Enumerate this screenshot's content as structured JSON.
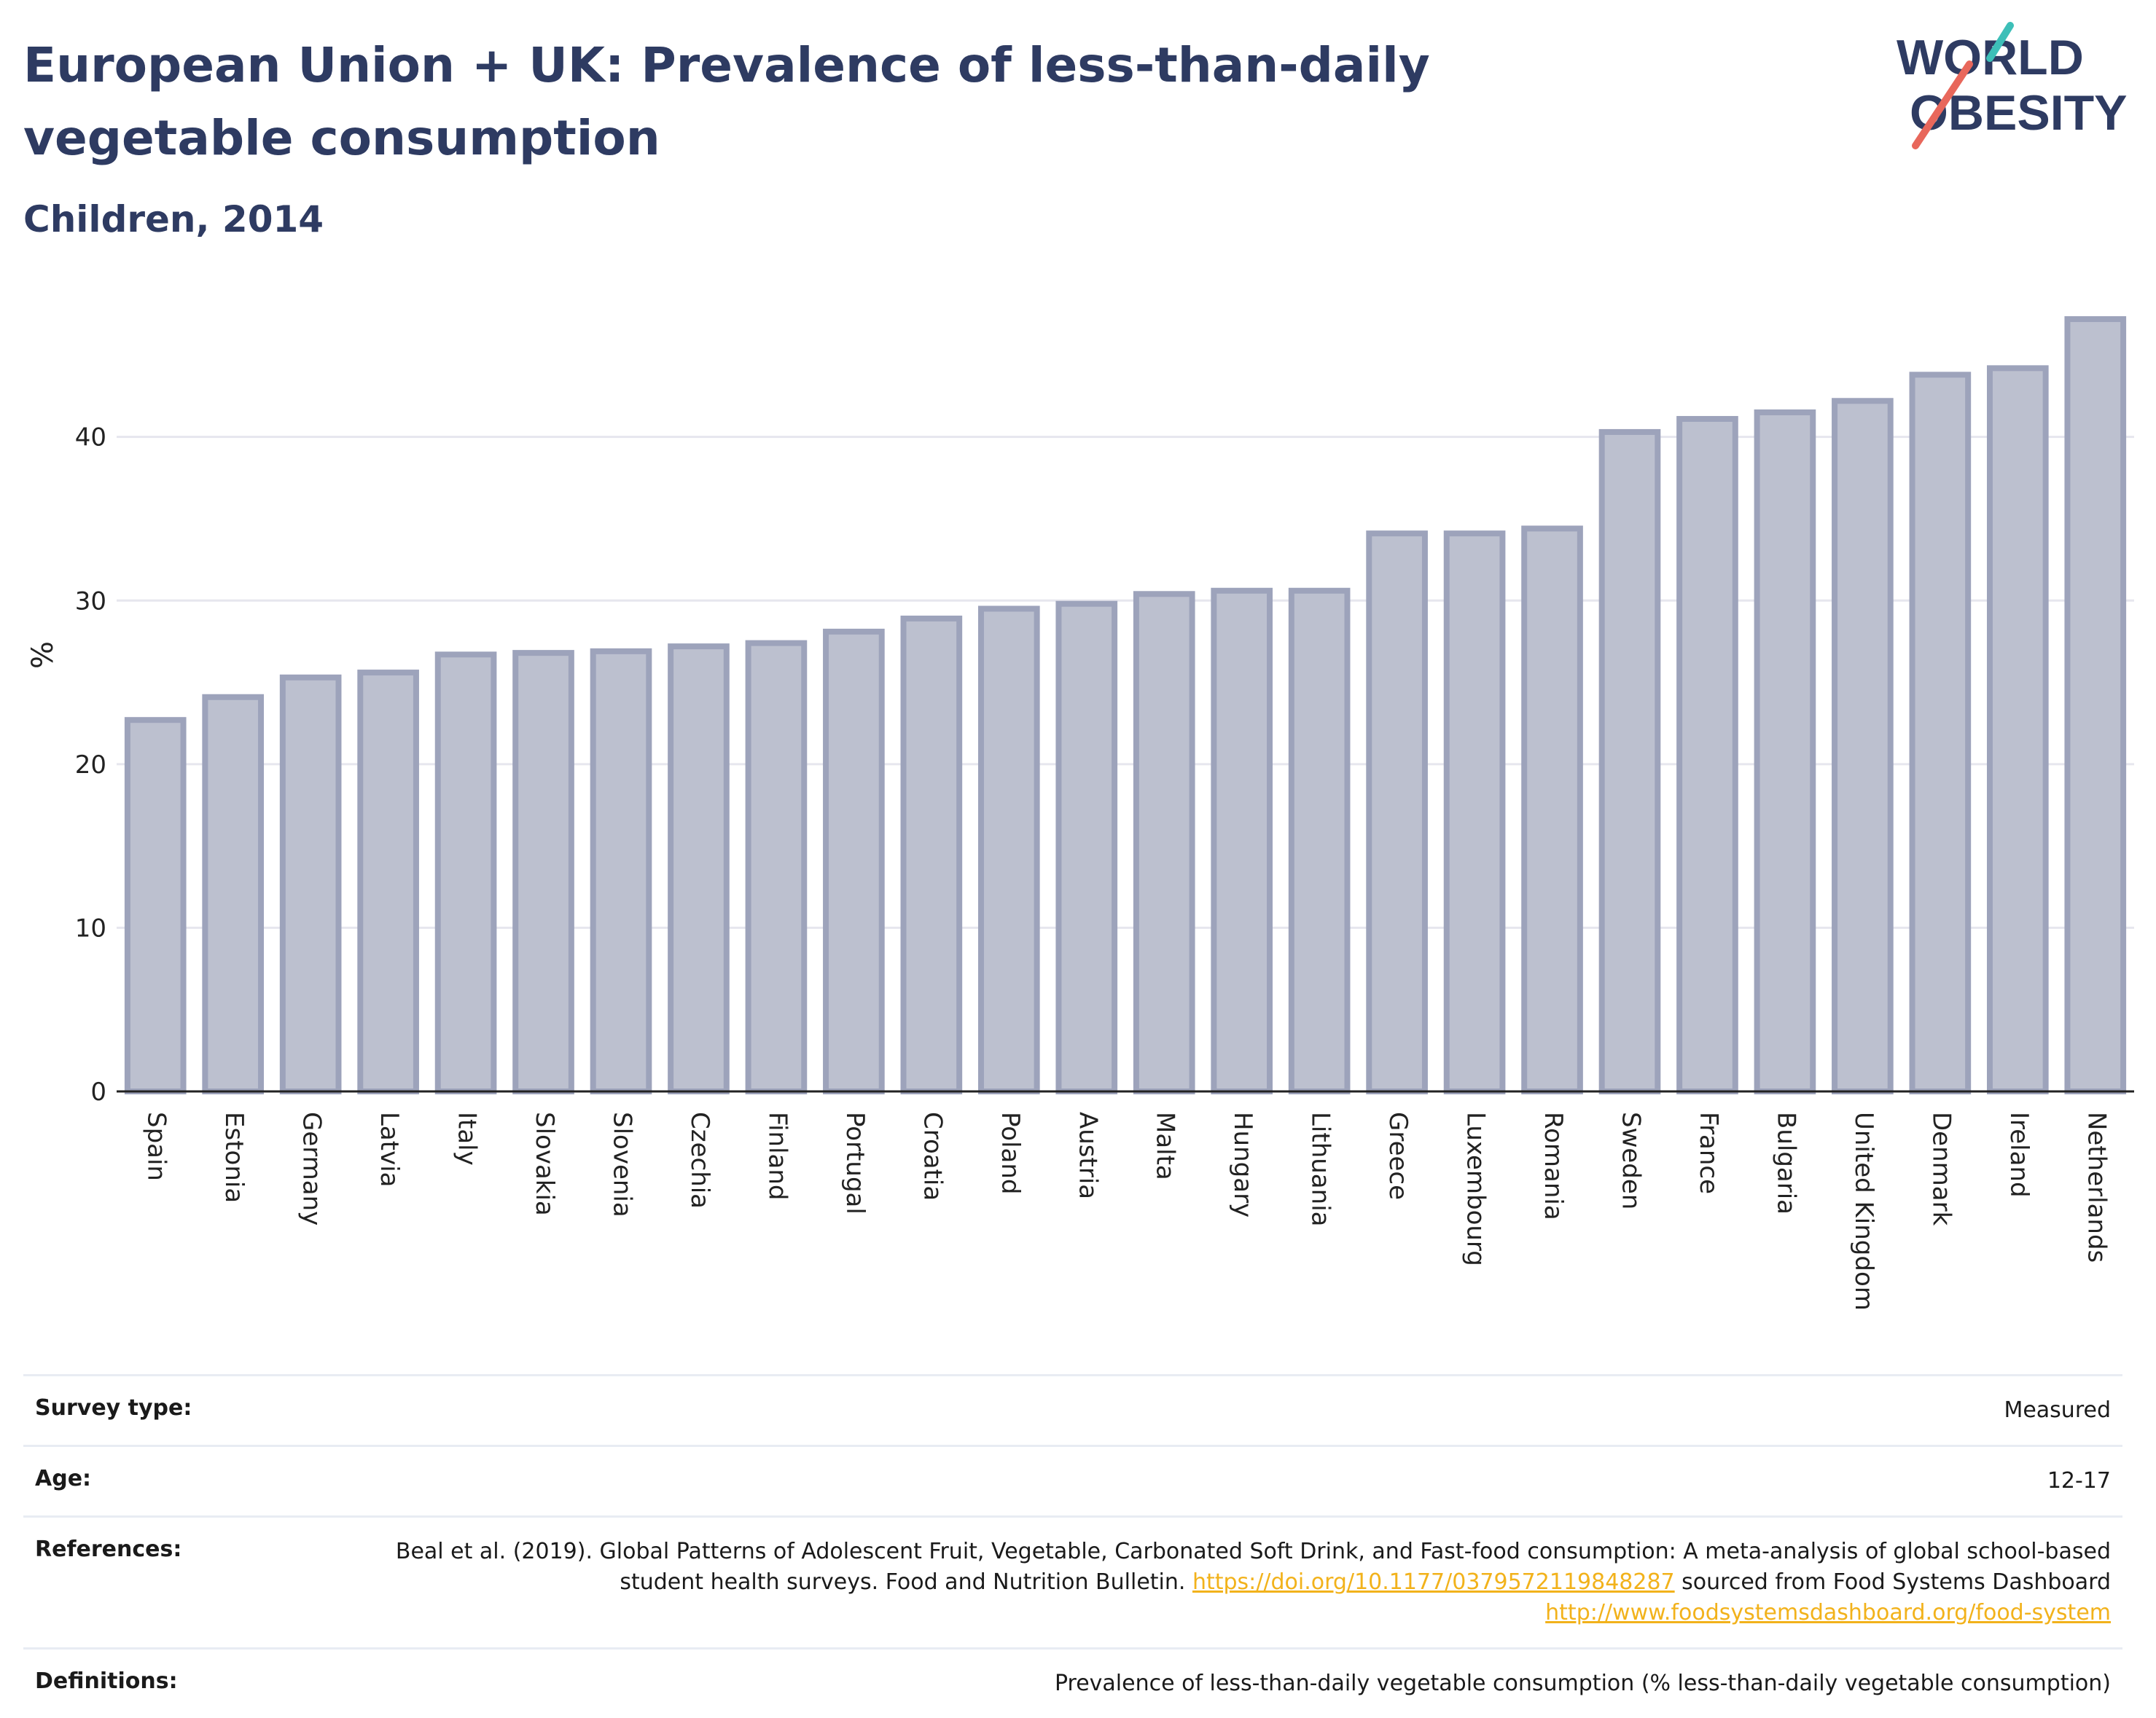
{
  "header": {
    "title": "European Union + UK: Prevalence of less-than-daily vegetable consumption",
    "subtitle": "Children, 2014"
  },
  "logo": {
    "line1": "WORLD",
    "line2": "OBESITY",
    "text_color": "#2e3b62",
    "accent_teal": "#3dbfb8",
    "accent_coral": "#e8675b"
  },
  "chart_data": {
    "type": "bar",
    "categories": [
      "Spain",
      "Estonia",
      "Germany",
      "Latvia",
      "Italy",
      "Slovakia",
      "Slovenia",
      "Czechia",
      "Finland",
      "Portugal",
      "Croatia",
      "Poland",
      "Austria",
      "Malta",
      "Hungary",
      "Lithuania",
      "Greece",
      "Luxembourg",
      "Romania",
      "Sweden",
      "France",
      "Bulgaria",
      "United Kingdom",
      "Denmark",
      "Ireland",
      "Netherlands"
    ],
    "values": [
      22.7,
      24.1,
      25.3,
      25.6,
      26.7,
      26.8,
      26.9,
      27.2,
      27.4,
      28.1,
      28.9,
      29.5,
      29.8,
      30.4,
      30.6,
      30.6,
      34.1,
      34.1,
      34.4,
      40.3,
      41.1,
      41.5,
      42.2,
      43.8,
      44.2,
      47.2
    ],
    "ylabel": "%",
    "xlabel": "",
    "ylim": [
      0,
      48
    ],
    "yticks": [
      0,
      10,
      20,
      30,
      40
    ],
    "grid": true,
    "bar_fill": "#bcc0cf",
    "bar_stroke": "#9da3bb"
  },
  "info": {
    "rows": [
      {
        "label": "Survey type:",
        "value": "Measured"
      },
      {
        "label": "Age:",
        "value": "12-17"
      },
      {
        "label": "References:",
        "value_parts": {
          "text1": "Beal et al. (2019). Global Patterns of Adolescent Fruit, Vegetable, Carbonated Soft Drink, and Fast-food consumption: A meta-analysis of global school-based student health surveys. Food and Nutrition Bulletin. ",
          "link1": "https://doi.org/10.1177/0379572119848287",
          "text2": " sourced from Food Systems Dashboard ",
          "link2": "http://www.foodsystemsdashboard.org/food-system"
        }
      },
      {
        "label": "Definitions:",
        "value": "Prevalence of less-than-daily vegetable consumption (% less-than-daily vegetable consumption)"
      }
    ]
  }
}
